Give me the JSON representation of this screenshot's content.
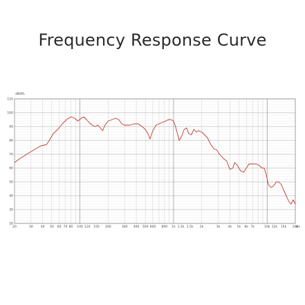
{
  "title": "Frequency Response Curve",
  "chart_data": {
    "type": "line",
    "title": "Frequency Response Curve",
    "xlabel": "",
    "ylabel": "dBSPL",
    "x_scale": "log",
    "xlim": [
      20,
      20000
    ],
    "ylim": [
      20,
      110
    ],
    "grid": true,
    "y_ticks": [
      20,
      30,
      40,
      50,
      60,
      70,
      80,
      90,
      100,
      110
    ],
    "x_ticks": [
      {
        "value": 20,
        "label": "20"
      },
      {
        "value": 30,
        "label": "30"
      },
      {
        "value": 40,
        "label": "40"
      },
      {
        "value": 50,
        "label": "50"
      },
      {
        "value": 60,
        "label": "60"
      },
      {
        "value": 70,
        "label": "70"
      },
      {
        "value": 80,
        "label": "80"
      },
      {
        "value": 100,
        "label": "100"
      },
      {
        "value": 120,
        "label": "120"
      },
      {
        "value": 150,
        "label": "150"
      },
      {
        "value": 200,
        "label": "200"
      },
      {
        "value": 300,
        "label": "300"
      },
      {
        "value": 400,
        "label": "400"
      },
      {
        "value": 500,
        "label": "500"
      },
      {
        "value": 600,
        "label": "600"
      },
      {
        "value": 800,
        "label": "800"
      },
      {
        "value": 1000,
        "label": "1k"
      },
      {
        "value": 1200,
        "label": "1.2k"
      },
      {
        "value": 1500,
        "label": "1.5k"
      },
      {
        "value": 2000,
        "label": "2k"
      },
      {
        "value": 3000,
        "label": "3k"
      },
      {
        "value": 4000,
        "label": "4k"
      },
      {
        "value": 5000,
        "label": "5k"
      },
      {
        "value": 6000,
        "label": "6k"
      },
      {
        "value": 7000,
        "label": "7k"
      },
      {
        "value": 10000,
        "label": "10k"
      },
      {
        "value": 12000,
        "label": "12k"
      },
      {
        "value": 15000,
        "label": "15k"
      },
      {
        "value": 20000,
        "label": "20k"
      }
    ],
    "x_unit_label": "Hz",
    "series": [
      {
        "color": "#c0392b",
        "points": [
          [
            20,
            64
          ],
          [
            23,
            67
          ],
          [
            27,
            70
          ],
          [
            32,
            73
          ],
          [
            38,
            76
          ],
          [
            44,
            77
          ],
          [
            48,
            81
          ],
          [
            52,
            85
          ],
          [
            58,
            88
          ],
          [
            65,
            92
          ],
          [
            72,
            95
          ],
          [
            80,
            97
          ],
          [
            88,
            96
          ],
          [
            95,
            94
          ],
          [
            103,
            96
          ],
          [
            110,
            97
          ],
          [
            118,
            95
          ],
          [
            125,
            93
          ],
          [
            135,
            91
          ],
          [
            145,
            90
          ],
          [
            155,
            91
          ],
          [
            165,
            89
          ],
          [
            175,
            87
          ],
          [
            185,
            91
          ],
          [
            200,
            94
          ],
          [
            220,
            95
          ],
          [
            240,
            96
          ],
          [
            260,
            95
          ],
          [
            280,
            92
          ],
          [
            300,
            91
          ],
          [
            340,
            91
          ],
          [
            380,
            92
          ],
          [
            420,
            92
          ],
          [
            460,
            90
          ],
          [
            500,
            88
          ],
          [
            540,
            84
          ],
          [
            560,
            81
          ],
          [
            600,
            87
          ],
          [
            650,
            91
          ],
          [
            700,
            92
          ],
          [
            760,
            93
          ],
          [
            820,
            94
          ],
          [
            880,
            95
          ],
          [
            940,
            95
          ],
          [
            1000,
            94
          ],
          [
            1050,
            90
          ],
          [
            1100,
            85
          ],
          [
            1150,
            80
          ],
          [
            1220,
            83
          ],
          [
            1300,
            88
          ],
          [
            1380,
            89
          ],
          [
            1450,
            85
          ],
          [
            1550,
            84
          ],
          [
            1650,
            88
          ],
          [
            1750,
            86
          ],
          [
            1850,
            87
          ],
          [
            2000,
            86
          ],
          [
            2150,
            84
          ],
          [
            2300,
            82
          ],
          [
            2500,
            77
          ],
          [
            2700,
            74
          ],
          [
            2900,
            73
          ],
          [
            3100,
            70
          ],
          [
            3400,
            67
          ],
          [
            3700,
            65
          ],
          [
            4000,
            59
          ],
          [
            4300,
            60
          ],
          [
            4500,
            64
          ],
          [
            4800,
            62
          ],
          [
            5200,
            58
          ],
          [
            5600,
            57
          ],
          [
            6000,
            60
          ],
          [
            6400,
            63
          ],
          [
            7000,
            63
          ],
          [
            7600,
            63
          ],
          [
            8200,
            62
          ],
          [
            8800,
            60
          ],
          [
            9300,
            60
          ],
          [
            9800,
            55
          ],
          [
            10300,
            48
          ],
          [
            11000,
            46
          ],
          [
            11700,
            47
          ],
          [
            12500,
            50
          ],
          [
            13300,
            50
          ],
          [
            14200,
            48
          ],
          [
            15000,
            44
          ],
          [
            16000,
            40
          ],
          [
            17000,
            36
          ],
          [
            18000,
            34
          ],
          [
            19000,
            37
          ],
          [
            20000,
            34
          ]
        ]
      }
    ]
  }
}
